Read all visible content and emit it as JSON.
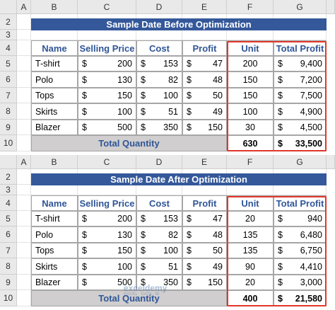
{
  "currency": "$",
  "column_headers": [
    "A",
    "B",
    "C",
    "D",
    "E",
    "F",
    "G"
  ],
  "row_numbers": [
    "2",
    "3",
    "4",
    "5",
    "6",
    "7",
    "8",
    "9",
    "10"
  ],
  "table_header": [
    "Name",
    "Selling Price",
    "Cost",
    "Profit",
    "Unit",
    "Total Profit"
  ],
  "total_label": "Total Quantity",
  "watermark": [
    "exceldemy",
    "EXCEL · DATA · BI"
  ],
  "sheets": [
    {
      "title": "Sample Date Before Optimization",
      "rows": [
        [
          "T-shirt",
          "200",
          "153",
          "47",
          "200",
          "9,400"
        ],
        [
          "Polo",
          "130",
          "82",
          "48",
          "150",
          "7,200"
        ],
        [
          "Tops",
          "150",
          "100",
          "50",
          "150",
          "7,500"
        ],
        [
          "Skirts",
          "100",
          "51",
          "49",
          "100",
          "4,900"
        ],
        [
          "Blazer",
          "500",
          "350",
          "150",
          "30",
          "4,500"
        ]
      ],
      "total_unit": "630",
      "total_profit": "33,500"
    },
    {
      "title": "Sample Date After Optimization",
      "rows": [
        [
          "T-shirt",
          "200",
          "153",
          "47",
          "20",
          "940"
        ],
        [
          "Polo",
          "130",
          "82",
          "48",
          "135",
          "6,480"
        ],
        [
          "Tops",
          "150",
          "100",
          "50",
          "135",
          "6,750"
        ],
        [
          "Skirts",
          "100",
          "51",
          "49",
          "90",
          "4,410"
        ],
        [
          "Blazer",
          "500",
          "350",
          "150",
          "20",
          "3,000"
        ]
      ],
      "total_unit": "400",
      "total_profit": "21,580"
    }
  ]
}
